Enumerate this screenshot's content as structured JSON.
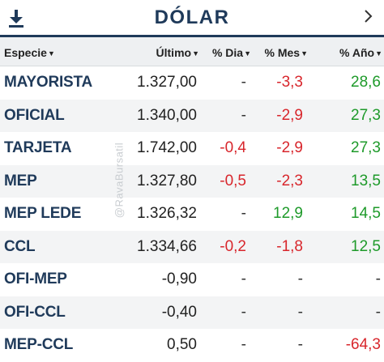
{
  "header": {
    "title": "DÓLAR",
    "download_icon": "download-icon",
    "next_icon": "chevron-right-icon"
  },
  "columns": {
    "especie": "Especie",
    "ultimo": "Último",
    "dia": "% Dia",
    "mes": "% Mes",
    "anio": "% Año",
    "sort_icon": "caret-down-icon"
  },
  "watermark": "@RavaBursatil",
  "colors": {
    "brand": "#1f3a5a",
    "negative": "#d8262c",
    "positive": "#1e9a2a"
  },
  "rows": [
    {
      "name": "MAYORISTA",
      "ultimo": "1.327,00",
      "dia": "-",
      "mes": "-3,3",
      "anio": "28,6"
    },
    {
      "name": "OFICIAL",
      "ultimo": "1.340,00",
      "dia": "-",
      "mes": "-2,9",
      "anio": "27,3"
    },
    {
      "name": "TARJETA",
      "ultimo": "1.742,00",
      "dia": "-0,4",
      "mes": "-2,9",
      "anio": "27,3"
    },
    {
      "name": "MEP",
      "ultimo": "1.327,80",
      "dia": "-0,5",
      "mes": "-2,3",
      "anio": "13,5"
    },
    {
      "name": "MEP LEDE",
      "ultimo": "1.326,32",
      "dia": "-",
      "mes": "12,9",
      "anio": "14,5"
    },
    {
      "name": "CCL",
      "ultimo": "1.334,66",
      "dia": "-0,2",
      "mes": "-1,8",
      "anio": "12,5"
    },
    {
      "name": "OFI-MEP",
      "ultimo": "-0,90",
      "dia": "-",
      "mes": "-",
      "anio": "-"
    },
    {
      "name": "OFI-CCL",
      "ultimo": "-0,40",
      "dia": "-",
      "mes": "-",
      "anio": "-"
    },
    {
      "name": "MEP-CCL",
      "ultimo": "0,50",
      "dia": "-",
      "mes": "-",
      "anio": "-64,3"
    }
  ]
}
